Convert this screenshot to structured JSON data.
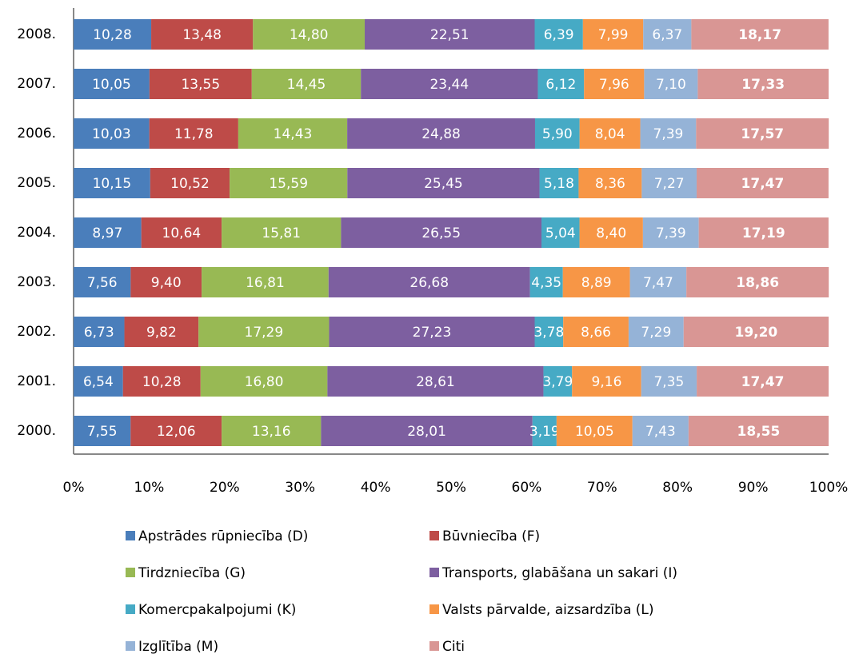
{
  "chart_data": {
    "type": "stacked-bar-horizontal",
    "categories": [
      "2008.",
      "2007.",
      "2006.",
      "2005.",
      "2004.",
      "2003.",
      "2002.",
      "2001.",
      "2000."
    ],
    "series": [
      {
        "name": "Apstrādes rūpniecība (D)",
        "color": "#4a7ebb",
        "values": [
          10.28,
          10.05,
          10.03,
          10.15,
          8.97,
          7.56,
          6.73,
          6.54,
          7.55
        ],
        "value_labels": [
          "10,28",
          "10,05",
          "10,03",
          "10,15",
          "8,97",
          "7,56",
          "6,73",
          "6,54",
          "7,55"
        ]
      },
      {
        "name": "Būvniecība (F)",
        "color": "#be4b48",
        "values": [
          13.48,
          13.55,
          11.78,
          10.52,
          10.64,
          9.4,
          9.82,
          10.28,
          12.06
        ],
        "value_labels": [
          "13,48",
          "13,55",
          "11,78",
          "10,52",
          "10,64",
          "9,40",
          "9,82",
          "10,28",
          "12,06"
        ]
      },
      {
        "name": "Tirdzniecība (G)",
        "color": "#98b954",
        "values": [
          14.8,
          14.45,
          14.43,
          15.59,
          15.81,
          16.81,
          17.29,
          16.8,
          13.16
        ],
        "value_labels": [
          "14,80",
          "14,45",
          "14,43",
          "15,59",
          "15,81",
          "16,81",
          "17,29",
          "16,80",
          "13,16"
        ]
      },
      {
        "name": "Transports, glabāšana  un sakari (I)",
        "color": "#7d5fa0",
        "values": [
          22.51,
          23.44,
          24.88,
          25.45,
          26.55,
          26.68,
          27.23,
          28.61,
          28.01
        ],
        "value_labels": [
          "22,51",
          "23,44",
          "24,88",
          "25,45",
          "26,55",
          "26,68",
          "27,23",
          "28,61",
          "28,01"
        ]
      },
      {
        "name": "Komercpakalpojumi (K)",
        "color": "#46aac5",
        "values": [
          6.39,
          6.12,
          5.9,
          5.18,
          5.04,
          4.35,
          3.78,
          3.79,
          3.19
        ],
        "value_labels": [
          "6,39",
          "6,12",
          "5,90",
          "5,18",
          "5,04",
          "4,35",
          "3,78",
          "3,79",
          "3,19"
        ]
      },
      {
        "name": "Valsts pārvalde, aizsardzība (L)",
        "color": "#f79646",
        "values": [
          7.99,
          7.96,
          8.04,
          8.36,
          8.4,
          8.89,
          8.66,
          9.16,
          10.05
        ],
        "value_labels": [
          "7,99",
          "7,96",
          "8,04",
          "8,36",
          "8,40",
          "8,89",
          "8,66",
          "9,16",
          "10,05"
        ]
      },
      {
        "name": "Izglītība (M)",
        "color": "#95b3d7",
        "values": [
          6.37,
          7.1,
          7.39,
          7.27,
          7.39,
          7.47,
          7.29,
          7.35,
          7.43
        ],
        "value_labels": [
          "6,37",
          "7,10",
          "7,39",
          "7,27",
          "7,39",
          "7,47",
          "7,29",
          "7,35",
          "7,43"
        ]
      },
      {
        "name": "Citi",
        "color": "#d99694",
        "values": [
          18.17,
          17.33,
          17.57,
          17.47,
          17.19,
          18.86,
          19.2,
          17.47,
          18.55
        ],
        "value_labels": [
          "18,17",
          "17,33",
          "17,57",
          "17,47",
          "17,19",
          "18,86",
          "19,20",
          "17,47",
          "18,55"
        ]
      }
    ],
    "xlim": [
      0,
      100
    ],
    "xticks": [
      {
        "value": 0,
        "label": "0%"
      },
      {
        "value": 10,
        "label": "10%"
      },
      {
        "value": 20,
        "label": "20%"
      },
      {
        "value": 30,
        "label": "30%"
      },
      {
        "value": 40,
        "label": "40%"
      },
      {
        "value": 50,
        "label": "50%"
      },
      {
        "value": 60,
        "label": "60%"
      },
      {
        "value": 70,
        "label": "70%"
      },
      {
        "value": 80,
        "label": "80%"
      },
      {
        "value": 90,
        "label": "90%"
      },
      {
        "value": 100,
        "label": "100%"
      }
    ],
    "legend": "bottom"
  }
}
